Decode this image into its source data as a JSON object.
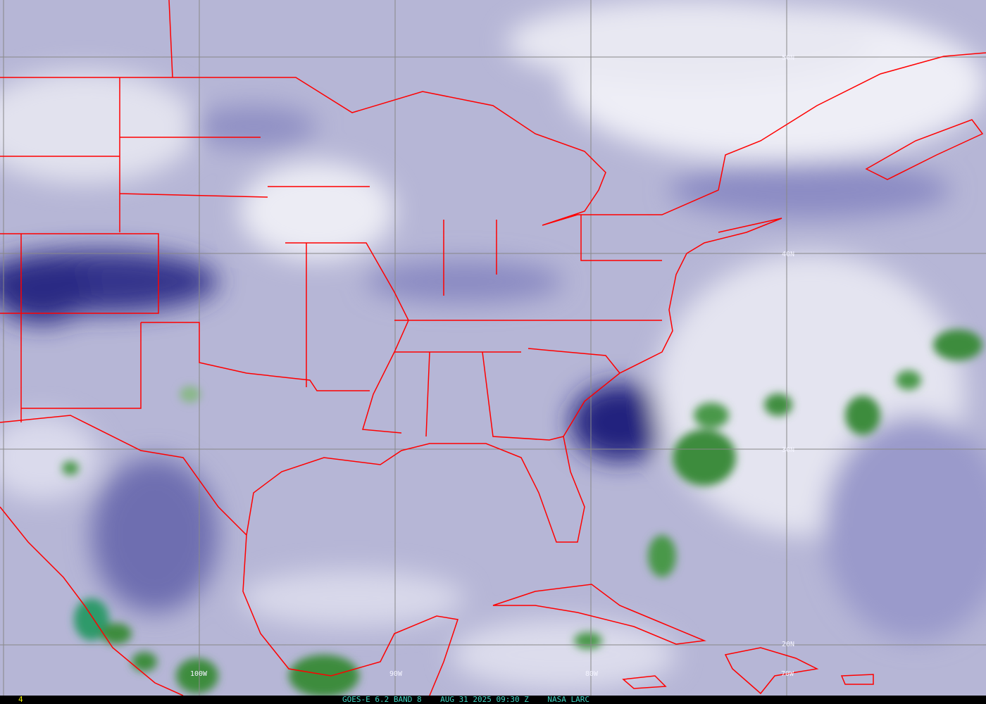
{
  "image": {
    "type": "GOES-E water vapor satellite image",
    "colors": {
      "moist_high_cloud": "#f2f2f8",
      "mid": "#b4b4d6",
      "dry": "#1e1e80",
      "deep_convection": "#3c8c3c",
      "borders": "#ff0000",
      "grid": "#808080"
    }
  },
  "grid_labels": {
    "lat": [
      "50N",
      "40N",
      "30N",
      "20N"
    ],
    "lon": [
      "100W",
      "90W",
      "80W",
      "70W"
    ]
  },
  "status_bar": {
    "frame_number": "4",
    "caption": "GOES-E 6.2 BAND 8    AUG 31 2025 09:30 Z    NASA LARC"
  }
}
